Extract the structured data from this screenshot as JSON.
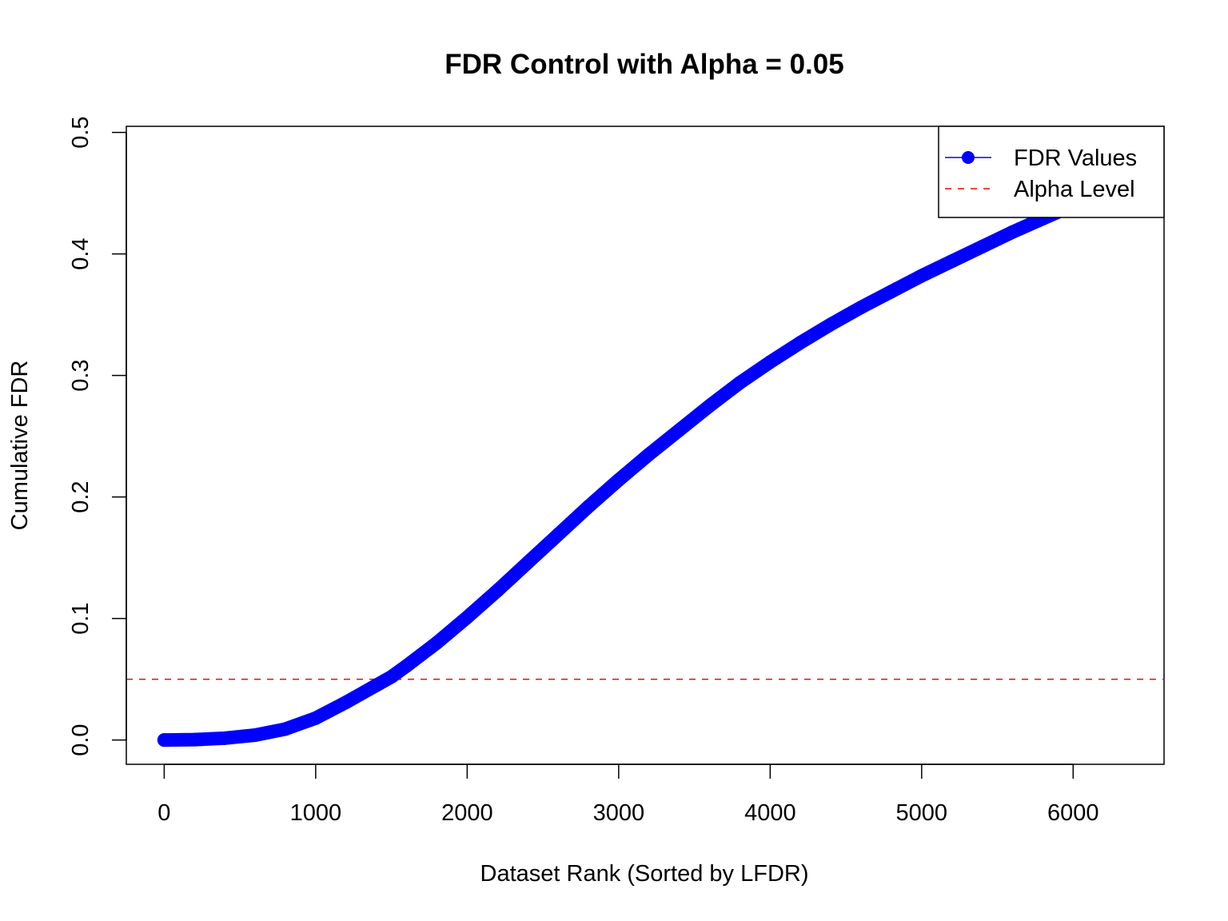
{
  "chart_data": {
    "type": "line",
    "title": "FDR Control with Alpha = 0.05",
    "xlabel": "Dataset Rank (Sorted by LFDR)",
    "ylabel": "Cumulative FDR",
    "xlim": [
      -250,
      6600
    ],
    "ylim": [
      -0.02,
      0.505
    ],
    "x_ticks": [
      0,
      1000,
      2000,
      3000,
      4000,
      5000,
      6000
    ],
    "y_ticks": [
      0.0,
      0.1,
      0.2,
      0.3,
      0.4,
      0.5
    ],
    "x_tick_labels": [
      "0",
      "1000",
      "2000",
      "3000",
      "4000",
      "5000",
      "6000"
    ],
    "y_tick_labels": [
      "0.0",
      "0.1",
      "0.2",
      "0.3",
      "0.4",
      "0.5"
    ],
    "grid": false,
    "legend_position": "top-right",
    "series": [
      {
        "name": "FDR Values",
        "color": "#0000ff",
        "style": "points-and-line",
        "x": [
          0,
          200,
          400,
          600,
          800,
          1000,
          1200,
          1400,
          1500,
          1600,
          1800,
          2000,
          2200,
          2400,
          2600,
          2800,
          3000,
          3200,
          3400,
          3600,
          3800,
          4000,
          4200,
          4400,
          4600,
          4800,
          5000,
          5200,
          5400,
          5600,
          5800,
          6000,
          6200
        ],
        "y": [
          0.0,
          0.0003,
          0.0015,
          0.004,
          0.009,
          0.018,
          0.031,
          0.045,
          0.052,
          0.061,
          0.08,
          0.101,
          0.123,
          0.146,
          0.169,
          0.192,
          0.214,
          0.235,
          0.255,
          0.275,
          0.294,
          0.311,
          0.327,
          0.342,
          0.356,
          0.369,
          0.382,
          0.394,
          0.406,
          0.418,
          0.429,
          0.44,
          0.451
        ]
      },
      {
        "name": "Alpha Level",
        "color": "#ff0000",
        "style": "dashed-hline",
        "y_value": 0.05
      }
    ]
  }
}
